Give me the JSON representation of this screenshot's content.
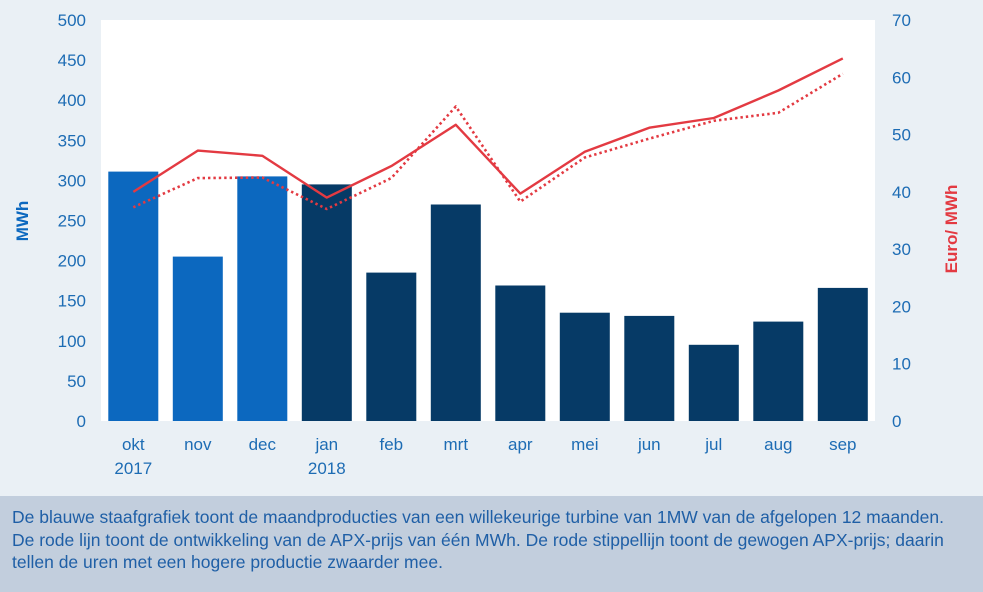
{
  "chart_data": {
    "type": "bar",
    "categories": [
      [
        "okt",
        "2017"
      ],
      [
        "nov"
      ],
      [
        "dec"
      ],
      [
        "jan",
        "2018"
      ],
      [
        "feb"
      ],
      [
        "mrt"
      ],
      [
        "apr"
      ],
      [
        "mei"
      ],
      [
        "jun"
      ],
      [
        "jul"
      ],
      [
        "aug"
      ],
      [
        "sep"
      ]
    ],
    "bar_series": {
      "values": [
        311,
        205,
        305,
        295,
        185,
        270,
        169,
        135,
        131,
        95,
        124,
        166
      ],
      "colors": [
        "#0c68bf",
        "#0c68bf",
        "#0c68bf",
        "#063a66",
        "#063a66",
        "#063a66",
        "#063a66",
        "#063a66",
        "#063a66",
        "#063a66",
        "#063a66",
        "#063a66"
      ]
    },
    "line_series": [
      {
        "style": "solid",
        "color": "#e33a42",
        "values": [
          40.0,
          47.2,
          46.3,
          39.0,
          44.5,
          51.7,
          39.7,
          47.0,
          51.2,
          52.9,
          57.7,
          63.3
        ]
      },
      {
        "style": "dotted",
        "color": "#e33a42",
        "values": [
          37.3,
          42.4,
          42.5,
          37.0,
          42.4,
          54.9,
          38.3,
          46.0,
          49.3,
          52.4,
          53.8,
          60.6
        ]
      }
    ],
    "ylabel": "MWh",
    "y2label": "Euro/ MWh",
    "ylim": [
      0,
      500
    ],
    "y2lim": [
      0,
      70
    ],
    "yticks": [
      "0",
      "50",
      "100",
      "150",
      "200",
      "250",
      "300",
      "350",
      "400",
      "450",
      "500"
    ],
    "y2ticks": [
      "0",
      "10",
      "20",
      "30",
      "40",
      "50",
      "60",
      "70"
    ],
    "grid": false
  },
  "caption": "De blauwe staafgrafiek toont de maandproducties van een willekeurige turbine van 1MW van de afgelopen 12 maanden. De rode lijn toont de ontwikkeling van de APX-prijs van één MWh. De rode stippellijn toont de gewogen APX-prijs; daarin tellen de uren met een hogere productie zwaarder mee."
}
